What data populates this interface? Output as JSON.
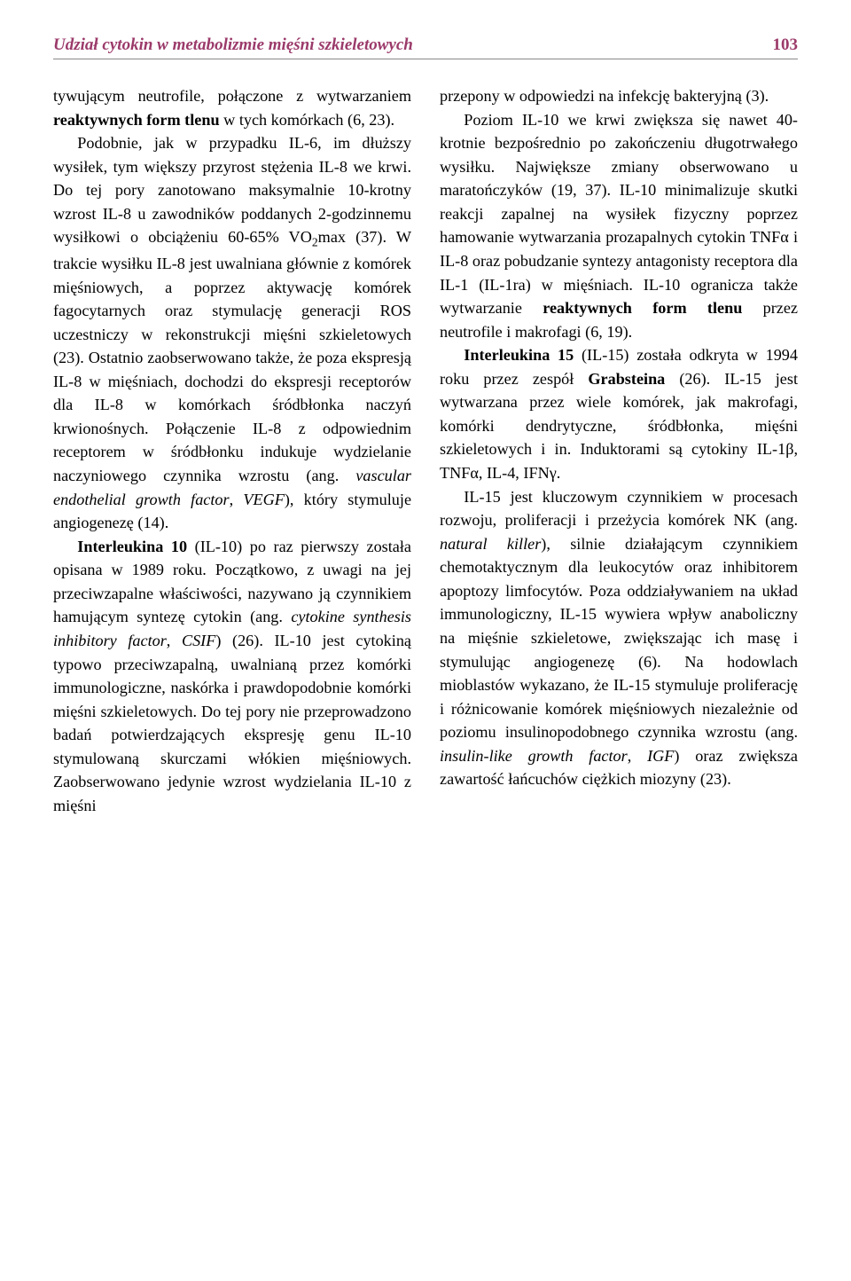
{
  "header": {
    "running_title": "Udział cytokin w metabolizmie mięśni szkieletowych",
    "page_number": "103"
  },
  "col1": {
    "p1_a": "tywującym neutrofile, połączone z wytwarzaniem ",
    "p1_bold": "reaktywnych form tlenu",
    "p1_b": " w tych komórkach (6, 23).",
    "p2_a": "Podobnie, jak w przypadku IL-6, im dłuższy wysiłek, tym większy przyrost stężenia IL-8 we krwi. Do tej pory zanotowano maksymalnie 10-krotny wzrost IL-8 u zawodników poddanych 2-godzinnemu wysiłkowi o obciążeniu 60-65% VO",
    "p2_sub": "2",
    "p2_b": "max (37). W trakcie wysiłku IL-8 jest uwalniana głównie z komórek mięśniowych, a poprzez aktywację komórek fagocytarnych oraz stymulację generacji ROS uczestniczy w rekonstrukcji mięśni szkieletowych (23). Ostatnio zaobserwowano także, że poza ekspresją IL-8 w mięśniach, dochodzi do ekspresji receptorów dla IL-8 w komórkach śródbłonka naczyń krwionośnych. Połączenie IL-8 z odpowiednim receptorem w śródbłonku indukuje wydzielanie naczyniowego czynnika wzrostu (ang. ",
    "p2_italic": "vascular endothelial growth factor",
    "p2_c": ", ",
    "p2_italic2": "VEGF",
    "p2_d": "), który stymuluje angiogenezę (14).",
    "p3_bold": "Interleukina 10",
    "p3_a": " (IL-10) po raz pierwszy została opisana w 1989 roku. Początkowo, z uwagi na jej przeciwzapalne właściwości, nazywano ją czynnikiem hamującym syntezę cytokin (ang. ",
    "p3_italic": "cytokine synthesis inhibitory factor",
    "p3_b": ", ",
    "p3_italic2": "CSIF",
    "p3_c": ") (26). IL-10 jest cytokiną typowo przeciwzapalną, uwalnianą przez komórki immunologiczne, naskórka i prawdopodobnie komórki mięśni szkieletowych. Do tej pory nie przeprowadzono badań potwierdzających ekspresję genu IL-10 stymulowaną skurczami włókien mięśniowych. Zaobserwowano jedynie wzrost wydzielania IL-10 z mięśni"
  },
  "col2": {
    "p1": "przepony w odpowiedzi na infekcję bakteryjną (3).",
    "p2_a": "Poziom IL-10 we krwi zwiększa się nawet 40-krotnie bezpośrednio po zakończeniu długotrwałego wysiłku. Największe zmiany obserwowano u maratończyków (19, 37). IL-10 minimalizuje skutki reakcji zapalnej na wysiłek fizyczny poprzez hamowanie wytwarzania prozapalnych cytokin TNFα i IL-8 oraz pobudzanie syntezy antagonisty receptora dla IL-1 (IL-1ra) w mięśniach. IL-10 ogranicza także wytwarzanie ",
    "p2_bold": "reaktywnych form tlenu",
    "p2_b": " przez neutrofile i makrofagi (6, 19).",
    "p3_bold": "Interleukina 15",
    "p3_a": " (IL-15) została odkryta w 1994 roku przez zespół ",
    "p3_bold2": "Grabsteina",
    "p3_b": " (26). IL-15 jest wytwarzana przez wiele komórek, jak makrofagi, komórki dendrytyczne, śródbłonka, mięśni szkieletowych i in. Induktorami są cytokiny IL-1β, TNFα, IL-4, IFNγ.",
    "p4_a": "IL-15 jest kluczowym czynnikiem w procesach rozwoju, proliferacji i przeżycia komórek NK (ang. ",
    "p4_italic": "natural killer",
    "p4_b": "), silnie działającym czynnikiem chemotaktycznym dla leukocytów oraz inhibitorem apoptozy limfocytów. Poza oddziaływaniem na układ immunologiczny, IL-15 wywiera wpływ anaboliczny na mięśnie szkieletowe, zwiększając ich masę i stymulując angiogenezę (6). Na hodowlach mioblastów wykazano, że IL-15 stymuluje proliferację i różnicowanie komórek mięśniowych niezależnie od poziomu insulinopodobnego czynnika wzrostu (ang. ",
    "p4_italic2": "insulin-like growth factor",
    "p4_c": ", ",
    "p4_italic3": "IGF",
    "p4_d": ") oraz zwiększa zawartość łańcuchów ciężkich miozyny (23)."
  }
}
